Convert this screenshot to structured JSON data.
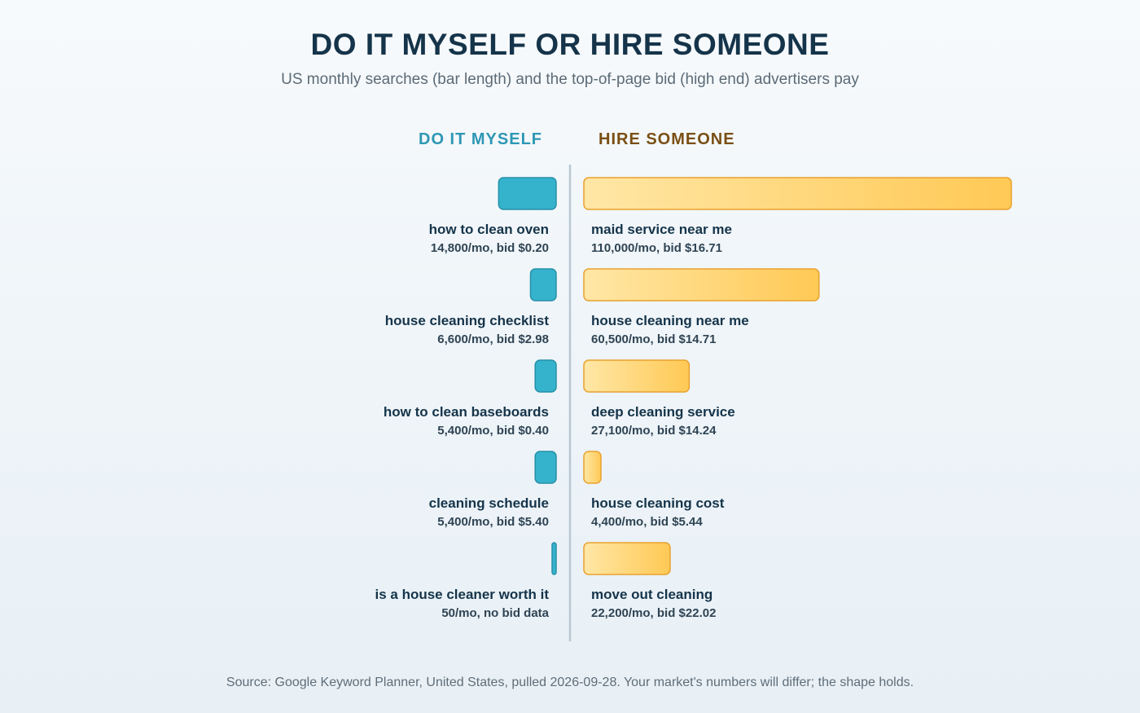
{
  "colors": {
    "diy_bar": "#35b3cd",
    "diy_bar_stroke": "#2790a8",
    "diy_heading": "#2e97b4",
    "hire_bar_light": "#ffe7a6",
    "hire_bar_dark": "#ffc955",
    "hire_bar_stroke": "#e9a12e",
    "hire_heading": "#7a4f14",
    "divider": "#b8c7d2"
  },
  "chart_data": {
    "type": "bar",
    "title": "DO IT MYSELF OR HIRE SOMEONE",
    "subtitle": "US monthly searches (bar length) and the top-of-page bid (high end) advertisers pay",
    "orientation": "horizontal-diverging",
    "grid": false,
    "source": "Source: Google Keyword Planner, United States, pulled 2026-09-28. Your market's numbers will differ; the shape holds.",
    "series": [
      {
        "name": "DO IT MYSELF",
        "side": "left",
        "items": [
          {
            "keyword": "how to clean oven",
            "searches": 14800,
            "bid": 0.2,
            "meta": "14,800/mo, bid $0.20"
          },
          {
            "keyword": "house cleaning checklist",
            "searches": 6600,
            "bid": 2.98,
            "meta": "6,600/mo, bid $2.98"
          },
          {
            "keyword": "how to clean baseboards",
            "searches": 5400,
            "bid": 0.4,
            "meta": "5,400/mo, bid $0.40"
          },
          {
            "keyword": "cleaning schedule",
            "searches": 5400,
            "bid": 5.4,
            "meta": "5,400/mo, bid $5.40"
          },
          {
            "keyword": "is a house cleaner worth it",
            "searches": 50,
            "bid": null,
            "meta": "50/mo, no bid data"
          }
        ]
      },
      {
        "name": "HIRE SOMEONE",
        "side": "right",
        "items": [
          {
            "keyword": "maid service near me",
            "searches": 110000,
            "bid": 16.71,
            "meta": "110,000/mo, bid $16.71"
          },
          {
            "keyword": "house cleaning near me",
            "searches": 60500,
            "bid": 14.71,
            "meta": "60,500/mo, bid $14.71"
          },
          {
            "keyword": "deep cleaning service",
            "searches": 27100,
            "bid": 14.24,
            "meta": "27,100/mo, bid $14.24"
          },
          {
            "keyword": "house cleaning cost",
            "searches": 4400,
            "bid": 5.44,
            "meta": "4,400/mo, bid $5.44"
          },
          {
            "keyword": "move out cleaning",
            "searches": 22200,
            "bid": 22.02,
            "meta": "22,200/mo, bid $22.02"
          }
        ]
      }
    ]
  }
}
